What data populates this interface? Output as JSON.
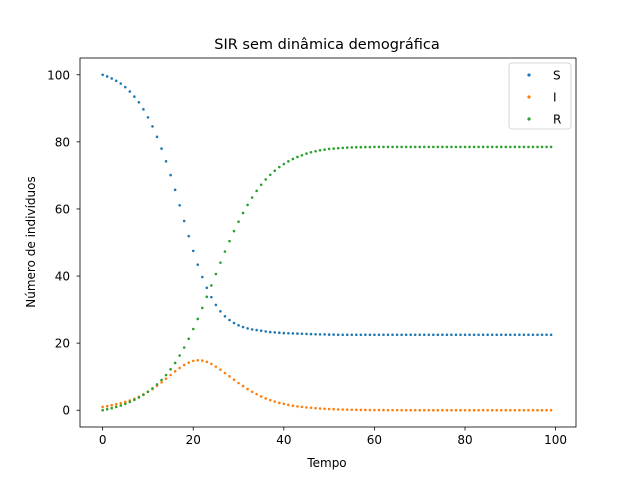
{
  "chart_data": {
    "type": "scatter",
    "title": "SIR sem dinâmica demográfica",
    "xlabel": "Tempo",
    "ylabel": "Número de indivíduos",
    "xlim": [
      -5,
      104.5
    ],
    "ylim": [
      -5,
      105
    ],
    "xticks": [
      0,
      20,
      40,
      60,
      80,
      100
    ],
    "yticks": [
      0,
      20,
      40,
      60,
      80,
      100
    ],
    "grid": false,
    "legend_position": "top-right",
    "x": [
      0,
      1,
      2,
      3,
      4,
      5,
      6,
      7,
      8,
      9,
      10,
      11,
      12,
      13,
      14,
      15,
      16,
      17,
      18,
      19,
      20,
      21,
      22,
      23,
      24,
      25,
      26,
      27,
      28,
      29,
      30,
      31,
      32,
      33,
      34,
      35,
      36,
      37,
      38,
      39,
      40,
      41,
      42,
      43,
      44,
      45,
      46,
      47,
      48,
      49,
      50,
      51,
      52,
      53,
      54,
      55,
      56,
      57,
      58,
      59,
      60,
      61,
      62,
      63,
      64,
      65,
      66,
      67,
      68,
      69,
      70,
      71,
      72,
      73,
      74,
      75,
      76,
      77,
      78,
      79,
      80,
      81,
      82,
      83,
      84,
      85,
      86,
      87,
      88,
      89,
      90,
      91,
      92,
      93,
      94,
      95,
      96,
      97,
      98,
      99
    ],
    "series": [
      {
        "name": "S",
        "color": "#1f77b4",
        "values": [
          100,
          99.5,
          98.9,
          98.2,
          97.4,
          96.3,
          95.0,
          93.5,
          91.8,
          89.7,
          87.3,
          84.6,
          81.5,
          78.0,
          74.2,
          70.1,
          65.7,
          61.1,
          56.4,
          51.9,
          47.5,
          43.4,
          39.7,
          36.5,
          33.7,
          31.4,
          29.5,
          28.0,
          26.9,
          26.0,
          25.3,
          24.8,
          24.4,
          24.1,
          23.9,
          23.7,
          23.5,
          23.3,
          23.2,
          23.1,
          23.0,
          22.95,
          22.9,
          22.85,
          22.8,
          22.75,
          22.7,
          22.65,
          22.6,
          22.6,
          22.55,
          22.55,
          22.5,
          22.5,
          22.5,
          22.5,
          22.5,
          22.5,
          22.5,
          22.5,
          22.5,
          22.5,
          22.5,
          22.5,
          22.5,
          22.5,
          22.5,
          22.5,
          22.5,
          22.5,
          22.5,
          22.5,
          22.5,
          22.5,
          22.5,
          22.5,
          22.5,
          22.5,
          22.5,
          22.5,
          22.5,
          22.5,
          22.5,
          22.5,
          22.5,
          22.5,
          22.5,
          22.5,
          22.5,
          22.5,
          22.5,
          22.5,
          22.5,
          22.5,
          22.5,
          22.5,
          22.5,
          22.5,
          22.5,
          22.5
        ]
      },
      {
        "name": "I",
        "color": "#ff7f0e",
        "values": [
          1.0,
          1.2,
          1.5,
          1.8,
          2.1,
          2.5,
          2.9,
          3.4,
          4.0,
          4.7,
          5.5,
          6.3,
          7.3,
          8.3,
          9.4,
          10.5,
          11.6,
          12.6,
          13.5,
          14.2,
          14.7,
          14.9,
          14.8,
          14.4,
          13.8,
          13.0,
          12.1,
          11.1,
          10.1,
          9.1,
          8.1,
          7.2,
          6.3,
          5.5,
          4.8,
          4.1,
          3.5,
          3.0,
          2.6,
          2.2,
          1.9,
          1.6,
          1.35,
          1.15,
          1.0,
          0.85,
          0.72,
          0.6,
          0.5,
          0.42,
          0.35,
          0.3,
          0.25,
          0.2,
          0.17,
          0.14,
          0.12,
          0.1,
          0.08,
          0.07,
          0.06,
          0.05,
          0.04,
          0.03,
          0.03,
          0.02,
          0.02,
          0.02,
          0.01,
          0.01,
          0.01,
          0.01,
          0,
          0,
          0,
          0,
          0,
          0,
          0,
          0,
          0,
          0,
          0,
          0,
          0,
          0,
          0,
          0,
          0,
          0,
          0,
          0,
          0,
          0,
          0,
          0,
          0,
          0,
          0,
          0
        ]
      },
      {
        "name": "R",
        "color": "#2ca02c",
        "values": [
          0,
          0.3,
          0.6,
          1.0,
          1.4,
          1.9,
          2.5,
          3.1,
          3.8,
          4.6,
          5.5,
          6.5,
          7.7,
          9.0,
          10.5,
          12.2,
          14.1,
          16.3,
          18.7,
          21.3,
          24.2,
          27.2,
          30.5,
          33.8,
          37.2,
          40.6,
          44.0,
          47.3,
          50.4,
          53.4,
          56.2,
          58.8,
          61.2,
          63.4,
          65.4,
          67.2,
          68.8,
          70.2,
          71.4,
          72.5,
          73.4,
          74.2,
          74.9,
          75.5,
          76.0,
          76.5,
          76.9,
          77.2,
          77.5,
          77.7,
          77.9,
          78.0,
          78.1,
          78.2,
          78.3,
          78.35,
          78.4,
          78.4,
          78.45,
          78.45,
          78.5,
          78.5,
          78.5,
          78.5,
          78.5,
          78.5,
          78.5,
          78.5,
          78.5,
          78.5,
          78.5,
          78.5,
          78.5,
          78.5,
          78.5,
          78.5,
          78.5,
          78.5,
          78.5,
          78.5,
          78.5,
          78.5,
          78.5,
          78.5,
          78.5,
          78.5,
          78.5,
          78.5,
          78.5,
          78.5,
          78.5,
          78.5,
          78.5,
          78.5,
          78.5,
          78.5,
          78.5,
          78.5,
          78.5,
          78.5
        ]
      }
    ]
  }
}
